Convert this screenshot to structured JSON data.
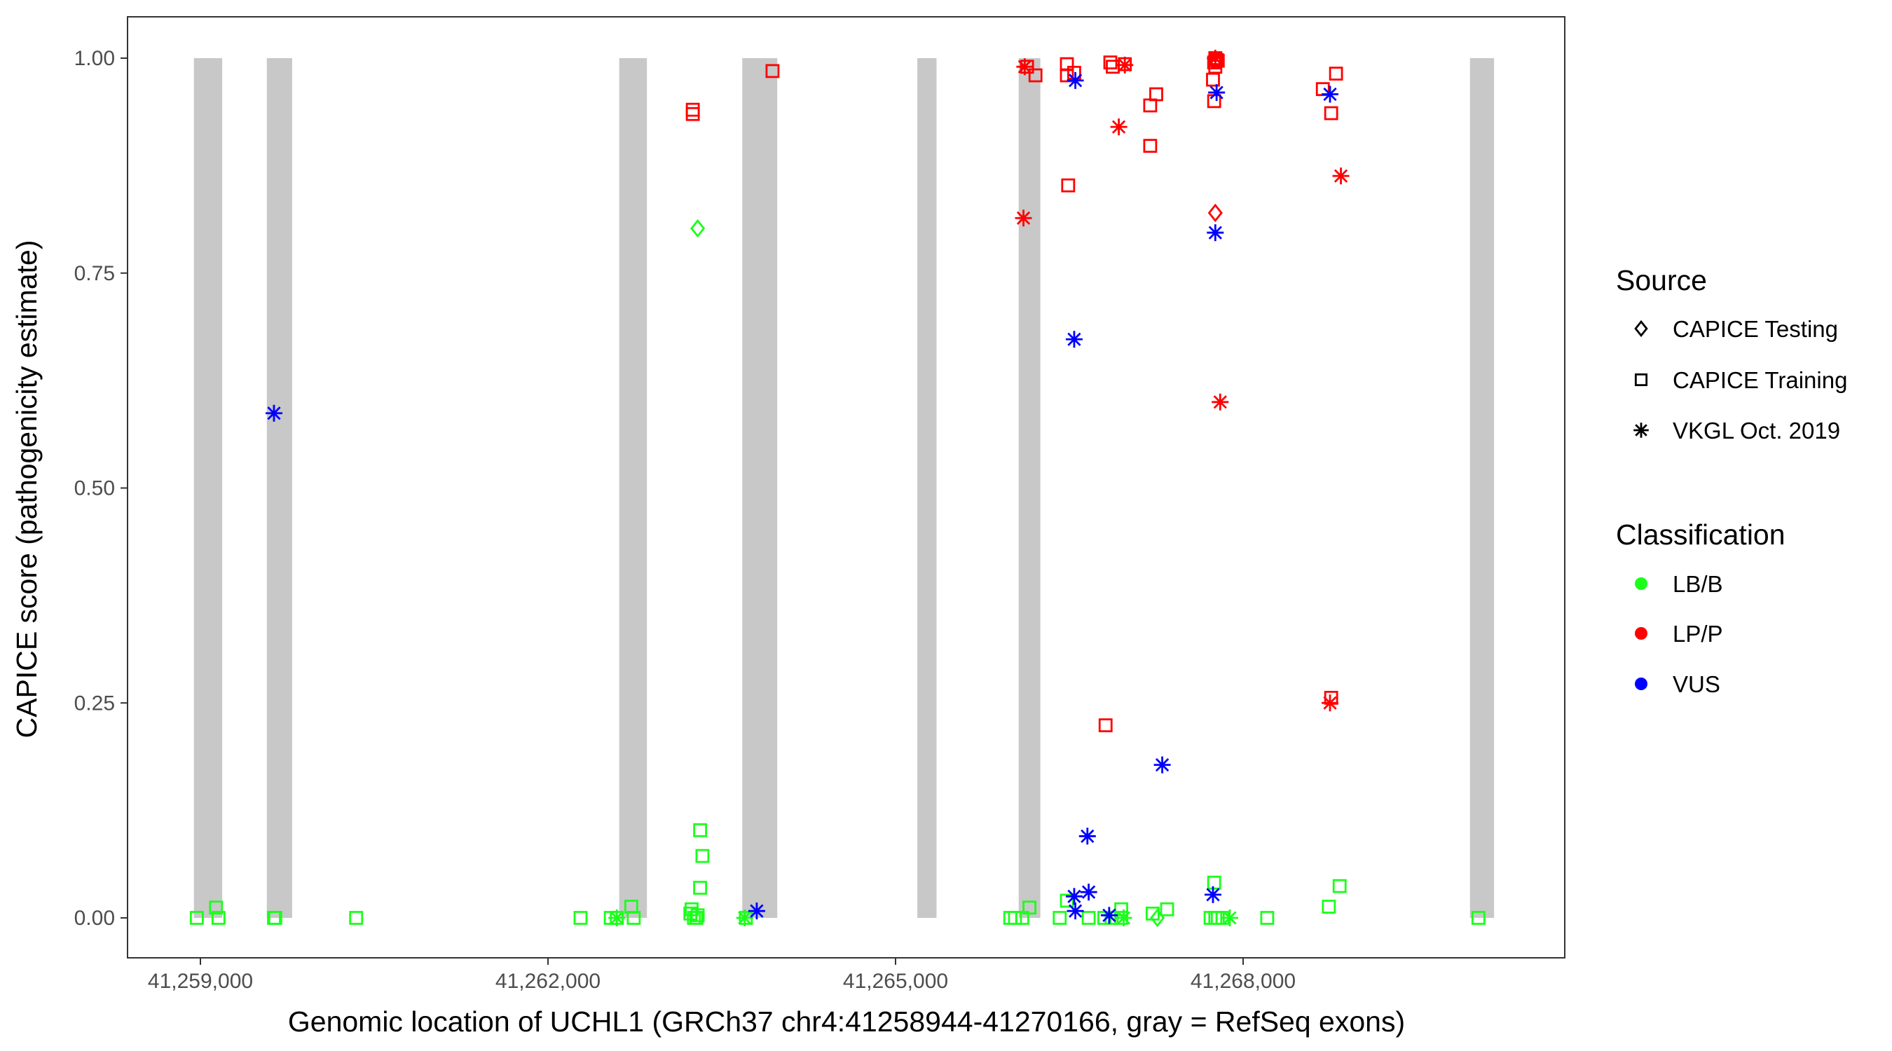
{
  "chart_data": {
    "type": "scatter",
    "xlabel": "Genomic location of UCHL1 (GRCh37 chr4:41258944-41270166, gray = RefSeq exons)",
    "ylabel": "CAPICE score (pathogenicity estimate)",
    "xlim": [
      41258700,
      41270550
    ],
    "ylim": [
      -0.05,
      1.05
    ],
    "x_ticks": [
      41259000,
      41262000,
      41265000,
      41268000
    ],
    "x_tick_labels": [
      "41,259,000",
      "41,262,000",
      "41,265,000",
      "41,268,000"
    ],
    "y_ticks": [
      0,
      0.25,
      0.5,
      0.75,
      1.0
    ],
    "y_tick_labels": [
      "0.00",
      "0.25",
      "0.50",
      "0.75",
      "1.00"
    ],
    "grid": false,
    "exons_color": "#c8c8c8",
    "exons": [
      [
        41258944,
        41259188
      ],
      [
        41259573,
        41259792
      ],
      [
        41262615,
        41262854
      ],
      [
        41263677,
        41263979
      ],
      [
        41265188,
        41265354
      ],
      [
        41266063,
        41266250
      ],
      [
        41269958,
        41270166
      ]
    ],
    "legend": {
      "placement": "right",
      "source_title": "Source",
      "sources": [
        {
          "key": "testing",
          "label": "CAPICE Testing",
          "shape": "diamond"
        },
        {
          "key": "training",
          "label": "CAPICE Training",
          "shape": "square"
        },
        {
          "key": "vkgl",
          "label": "VKGL Oct. 2019",
          "shape": "asterisk"
        }
      ],
      "class_title": "Classification",
      "classes": [
        {
          "key": "LB/B",
          "label": "LB/B",
          "color": "#1aff1a"
        },
        {
          "key": "LP/P",
          "label": "LP/P",
          "color": "#ff0000"
        },
        {
          "key": "VUS",
          "label": "VUS",
          "color": "#0000ff"
        }
      ]
    },
    "columns": [
      "position",
      "score",
      "source",
      "classification"
    ],
    "points": [
      [
        41258969,
        0,
        "training",
        "LB/B"
      ],
      [
        41259135,
        0.012,
        "training",
        "LB/B"
      ],
      [
        41259156,
        0,
        "training",
        "LB/B"
      ],
      [
        41259635,
        0,
        "training",
        "LB/B"
      ],
      [
        41259646,
        0,
        "training",
        "LB/B"
      ],
      [
        41260344,
        0,
        "training",
        "LB/B"
      ],
      [
        41262281,
        0,
        "training",
        "LB/B"
      ],
      [
        41262542,
        0,
        "training",
        "LB/B"
      ],
      [
        41262594,
        0,
        "vkgl",
        "LB/B"
      ],
      [
        41262594,
        0,
        "training",
        "LB/B"
      ],
      [
        41262719,
        0.013,
        "training",
        "LB/B"
      ],
      [
        41262740,
        0,
        "training",
        "LB/B"
      ],
      [
        41263229,
        0.005,
        "training",
        "LB/B"
      ],
      [
        41263240,
        0.01,
        "training",
        "LB/B"
      ],
      [
        41263260,
        0,
        "training",
        "LB/B"
      ],
      [
        41263281,
        0,
        "training",
        "LB/B"
      ],
      [
        41263292,
        0.003,
        "training",
        "LB/B"
      ],
      [
        41263313,
        0.102,
        "training",
        "LB/B"
      ],
      [
        41263333,
        0.072,
        "training",
        "LB/B"
      ],
      [
        41263313,
        0.035,
        "training",
        "LB/B"
      ],
      [
        41263698,
        0,
        "vkgl",
        "LB/B"
      ],
      [
        41263708,
        0,
        "training",
        "LB/B"
      ],
      [
        41265990,
        0,
        "training",
        "LB/B"
      ],
      [
        41266031,
        0,
        "training",
        "LB/B"
      ],
      [
        41266094,
        0,
        "training",
        "LB/B"
      ],
      [
        41266156,
        0.012,
        "training",
        "LB/B"
      ],
      [
        41266417,
        0,
        "training",
        "LB/B"
      ],
      [
        41266479,
        0.02,
        "training",
        "LB/B"
      ],
      [
        41266667,
        0,
        "training",
        "LB/B"
      ],
      [
        41266802,
        0,
        "training",
        "LB/B"
      ],
      [
        41266865,
        0,
        "training",
        "LB/B"
      ],
      [
        41266948,
        0.01,
        "training",
        "LB/B"
      ],
      [
        41266969,
        0,
        "vkgl",
        "LB/B"
      ],
      [
        41266948,
        0,
        "training",
        "LB/B"
      ],
      [
        41267219,
        0.005,
        "training",
        "LB/B"
      ],
      [
        41267260,
        0,
        "testing",
        "LB/B"
      ],
      [
        41267344,
        0.01,
        "training",
        "LB/B"
      ],
      [
        41267719,
        0,
        "training",
        "LB/B"
      ],
      [
        41267750,
        0.041,
        "training",
        "LB/B"
      ],
      [
        41267760,
        0,
        "training",
        "LB/B"
      ],
      [
        41267781,
        0,
        "training",
        "LB/B"
      ],
      [
        41267823,
        0,
        "training",
        "LB/B"
      ],
      [
        41267885,
        0,
        "vkgl",
        "LB/B"
      ],
      [
        41268208,
        0,
        "training",
        "LB/B"
      ],
      [
        41268740,
        0.013,
        "training",
        "LB/B"
      ],
      [
        41268833,
        0.037,
        "training",
        "LB/B"
      ],
      [
        41270031,
        0,
        "training",
        "LB/B"
      ],
      [
        41263292,
        0.802,
        "testing",
        "LB/B"
      ],
      [
        41263250,
        0.94,
        "training",
        "LP/P"
      ],
      [
        41263250,
        0.935,
        "training",
        "LP/P"
      ],
      [
        41263938,
        0.985,
        "training",
        "LP/P"
      ],
      [
        41266115,
        0.99,
        "vkgl",
        "LP/P"
      ],
      [
        41266135,
        0.99,
        "training",
        "LP/P"
      ],
      [
        41266208,
        0.98,
        "training",
        "LP/P"
      ],
      [
        41266479,
        0.993,
        "training",
        "LP/P"
      ],
      [
        41266479,
        0.98,
        "training",
        "LP/P"
      ],
      [
        41266542,
        0.983,
        "training",
        "LP/P"
      ],
      [
        41266490,
        0.852,
        "training",
        "LP/P"
      ],
      [
        41266854,
        0.995,
        "training",
        "LP/P"
      ],
      [
        41266875,
        0.99,
        "training",
        "LP/P"
      ],
      [
        41266979,
        0.993,
        "training",
        "LP/P"
      ],
      [
        41266979,
        0.992,
        "vkgl",
        "LP/P"
      ],
      [
        41266927,
        0.92,
        "vkgl",
        "LP/P"
      ],
      [
        41267198,
        0.945,
        "training",
        "LP/P"
      ],
      [
        41267250,
        0.958,
        "training",
        "LP/P"
      ],
      [
        41267198,
        0.898,
        "training",
        "LP/P"
      ],
      [
        41267760,
        1.0,
        "training",
        "LP/P"
      ],
      [
        41267771,
        0.998,
        "training",
        "LP/P"
      ],
      [
        41267750,
        0.995,
        "training",
        "LP/P"
      ],
      [
        41267760,
        1.0,
        "vkgl",
        "LP/P"
      ],
      [
        41267781,
        0.997,
        "training",
        "LP/P"
      ],
      [
        41267740,
        0.975,
        "training",
        "LP/P"
      ],
      [
        41267750,
        0.95,
        "training",
        "LP/P"
      ],
      [
        41267760,
        0.99,
        "training",
        "LP/P"
      ],
      [
        41268688,
        0.964,
        "training",
        "LP/P"
      ],
      [
        41268760,
        0.936,
        "training",
        "LP/P"
      ],
      [
        41268802,
        0.982,
        "training",
        "LP/P"
      ],
      [
        41268760,
        0.256,
        "training",
        "LP/P"
      ],
      [
        41268750,
        0.25,
        "vkgl",
        "LP/P"
      ],
      [
        41268844,
        0.863,
        "vkgl",
        "LP/P"
      ],
      [
        41267802,
        0.6,
        "vkgl",
        "LP/P"
      ],
      [
        41266104,
        0.814,
        "vkgl",
        "LP/P"
      ],
      [
        41266813,
        0.224,
        "training",
        "LP/P"
      ],
      [
        41267760,
        0.82,
        "testing",
        "LP/P"
      ],
      [
        41259635,
        0.587,
        "vkgl",
        "VUS"
      ],
      [
        41263802,
        0.008,
        "vkgl",
        "VUS"
      ],
      [
        41266552,
        0.974,
        "vkgl",
        "VUS"
      ],
      [
        41267771,
        0.96,
        "vkgl",
        "VUS"
      ],
      [
        41268750,
        0.958,
        "vkgl",
        "VUS"
      ],
      [
        41267760,
        0.797,
        "vkgl",
        "VUS"
      ],
      [
        41266542,
        0.673,
        "vkgl",
        "VUS"
      ],
      [
        41267302,
        0.178,
        "vkgl",
        "VUS"
      ],
      [
        41266656,
        0.095,
        "vkgl",
        "VUS"
      ],
      [
        41266667,
        0.03,
        "vkgl",
        "VUS"
      ],
      [
        41266542,
        0.025,
        "vkgl",
        "VUS"
      ],
      [
        41266552,
        0.008,
        "vkgl",
        "VUS"
      ],
      [
        41266844,
        0.003,
        "vkgl",
        "VUS"
      ],
      [
        41267740,
        0.027,
        "vkgl",
        "VUS"
      ]
    ]
  }
}
